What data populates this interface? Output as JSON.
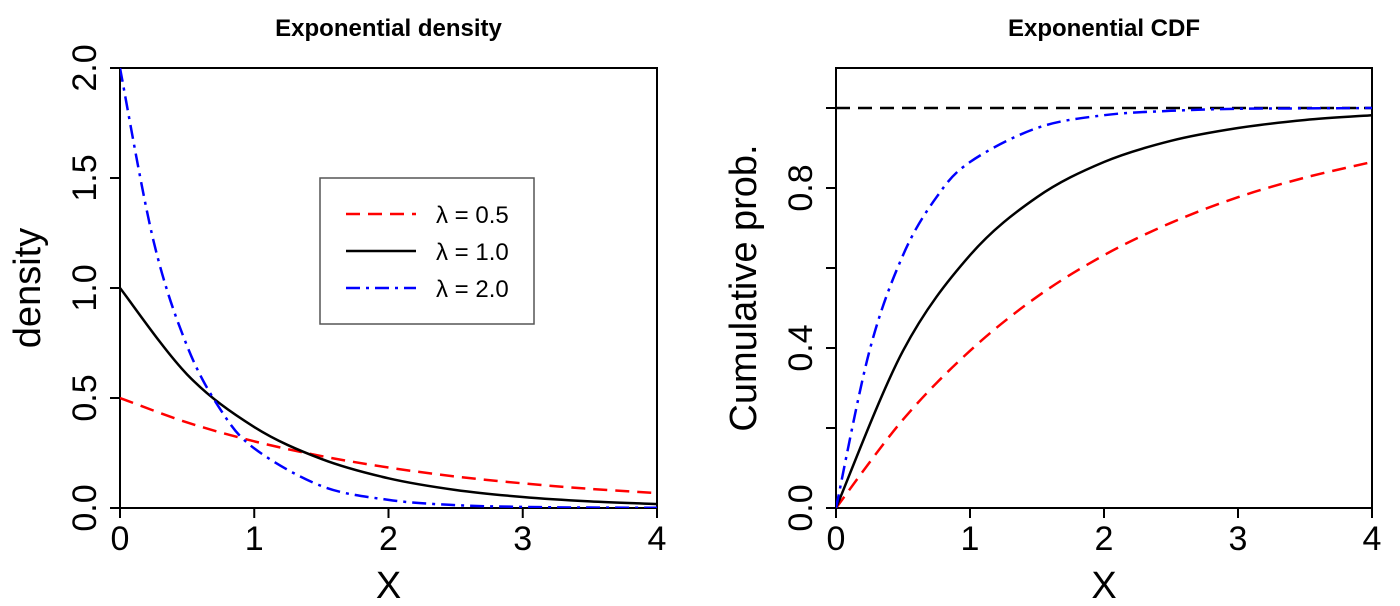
{
  "chart_data": [
    {
      "type": "line",
      "title": "Exponential density",
      "xlabel": "X",
      "ylabel": "density",
      "xlim": [
        0,
        4
      ],
      "ylim": [
        0,
        2
      ],
      "xticks": [
        "0",
        "1",
        "2",
        "3",
        "4"
      ],
      "yticks": [
        "0.0",
        "0.5",
        "1.0",
        "1.5",
        "2.0"
      ],
      "grid": false,
      "legend_position": "center-right",
      "series": [
        {
          "name": "λ = 0.5",
          "color": "#ff0000",
          "style": "dashed",
          "x": [
            0,
            0.5,
            1,
            1.5,
            2,
            2.5,
            3,
            3.5,
            4
          ],
          "y": [
            0.5,
            0.389,
            0.303,
            0.236,
            0.184,
            0.143,
            0.112,
            0.087,
            0.068
          ]
        },
        {
          "name": "λ = 1.0",
          "color": "#000000",
          "style": "solid",
          "x": [
            0,
            0.5,
            1,
            1.5,
            2,
            2.5,
            3,
            3.5,
            4
          ],
          "y": [
            1.0,
            0.607,
            0.368,
            0.223,
            0.135,
            0.082,
            0.05,
            0.03,
            0.018
          ]
        },
        {
          "name": "λ = 2.0",
          "color": "#0000ff",
          "style": "dashdot",
          "x": [
            0,
            0.25,
            0.5,
            0.75,
            1,
            1.5,
            2,
            2.5,
            3,
            3.5,
            4
          ],
          "y": [
            2.0,
            1.213,
            0.736,
            0.446,
            0.271,
            0.1,
            0.037,
            0.013,
            0.005,
            0.002,
            0.001
          ]
        }
      ]
    },
    {
      "type": "line",
      "title": "Exponential CDF",
      "xlabel": "X",
      "ylabel": "Cumulative prob.",
      "xlim": [
        0,
        4
      ],
      "ylim": [
        0,
        1.1
      ],
      "xticks": [
        "0",
        "1",
        "2",
        "3",
        "4"
      ],
      "yticks": [
        "0.0",
        "0.4",
        "0.8"
      ],
      "grid": false,
      "reference_line": {
        "y": 1,
        "style": "dashed",
        "color": "#000000"
      },
      "series": [
        {
          "color": "#ff0000",
          "style": "dashed",
          "x": [
            0,
            0.5,
            1,
            1.5,
            2,
            2.5,
            3,
            3.5,
            4
          ],
          "y": [
            0,
            0.221,
            0.393,
            0.528,
            0.632,
            0.713,
            0.777,
            0.826,
            0.865
          ]
        },
        {
          "color": "#000000",
          "style": "solid",
          "x": [
            0,
            0.5,
            1,
            1.5,
            2,
            2.5,
            3,
            3.5,
            4
          ],
          "y": [
            0,
            0.393,
            0.632,
            0.777,
            0.865,
            0.918,
            0.95,
            0.97,
            0.982
          ]
        },
        {
          "color": "#0000ff",
          "style": "dashdot",
          "x": [
            0,
            0.25,
            0.5,
            0.75,
            1,
            1.5,
            2,
            2.5,
            3,
            3.5,
            4
          ],
          "y": [
            0,
            0.393,
            0.632,
            0.777,
            0.865,
            0.95,
            0.982,
            0.993,
            0.998,
            0.999,
            1.0
          ]
        }
      ]
    }
  ]
}
